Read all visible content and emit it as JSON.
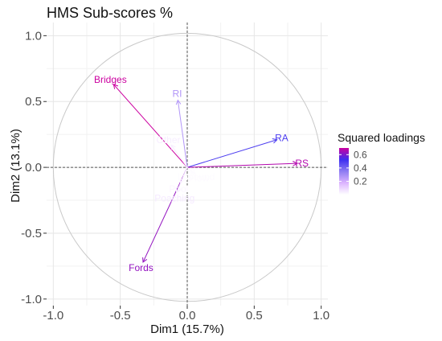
{
  "chart_data": {
    "type": "scatter",
    "title": "HMS Sub-scores %",
    "xlabel": "Dim1 (15.7%)",
    "ylabel": "Dim2 (13.1%)",
    "xlim": [
      -1.05,
      1.05
    ],
    "ylim": [
      -1.05,
      1.1
    ],
    "x_ticks": [
      -1.0,
      -0.5,
      0.0,
      0.5,
      1.0
    ],
    "y_ticks": [
      -1.0,
      -0.5,
      0.0,
      0.5,
      1.0
    ],
    "x_tick_labels": [
      "-1.0",
      "-0.5",
      "0.0",
      "0.5",
      "1.0"
    ],
    "y_tick_labels": [
      "-1.0",
      "-0.5",
      "0.0",
      "0.5",
      "1.0"
    ],
    "grid": true,
    "unit_circle": true,
    "legend": {
      "title": "Squared loadings",
      "placement": "right",
      "ticks": [
        0.6,
        0.4,
        0.2
      ],
      "tick_labels": [
        "0.6",
        "0.4",
        "0.2"
      ],
      "range": [
        0.0,
        0.7
      ],
      "colors": [
        "#ffffff",
        "#dcb4ff",
        "#8e7cf2",
        "#3d2ef0",
        "#cc00a0"
      ]
    },
    "series": [
      {
        "label": "Bridges",
        "x": -0.55,
        "y": 0.63,
        "cos2": 0.7
      },
      {
        "label": "RI",
        "x": -0.07,
        "y": 0.51,
        "cos2": 0.27
      },
      {
        "label": "RA",
        "x": 0.67,
        "y": 0.21,
        "cos2": 0.49
      },
      {
        "label": "RS",
        "x": 0.82,
        "y": 0.03,
        "cos2": 0.67
      },
      {
        "label": "Fords",
        "x": -0.33,
        "y": -0.72,
        "cos2": 0.63
      },
      {
        "label": "Other",
        "x": -0.12,
        "y": 0.17,
        "cos2": 0.04
      },
      {
        "label": "Flow",
        "x": 0.06,
        "y": -0.05,
        "cos2": 0.01
      },
      {
        "label": "Impound",
        "x": 0.04,
        "y": -0.04,
        "cos2": 0.01
      },
      {
        "label": "Pool",
        "x": -0.05,
        "y": -0.12,
        "cos2": 0.02
      },
      {
        "label": "Poaching",
        "x": -0.08,
        "y": -0.19,
        "cos2": 0.05
      }
    ]
  }
}
